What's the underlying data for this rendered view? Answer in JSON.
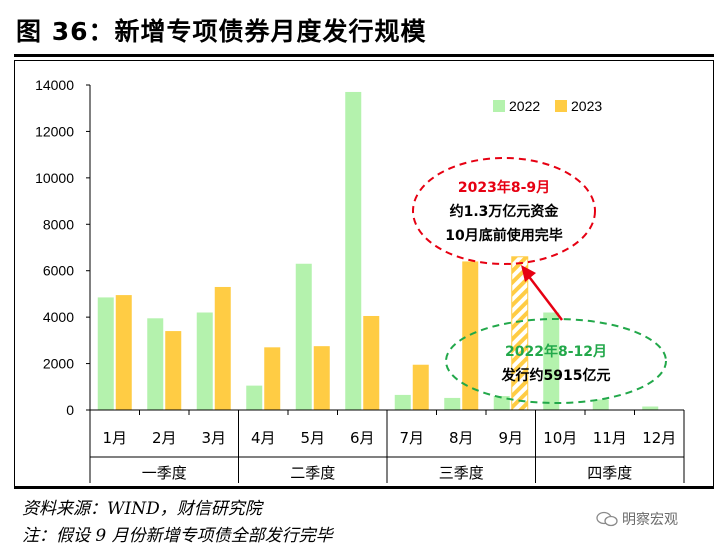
{
  "header": {
    "title": "图 36：新增专项债券月度发行规模"
  },
  "footer": {
    "source": "资料来源：WIND，财信研究院",
    "note": "注：假设 9 月份新增专项债全部发行完毕",
    "watermark": "明察宏观"
  },
  "colors": {
    "s2022": "#b4f2ad",
    "s2023": "#ffcc44",
    "red": "#e60012",
    "green": "#22a84a"
  },
  "annotations": {
    "a2023": [
      "2023年8-9月",
      "约1.3万亿元资金",
      "10月底前使用完毕"
    ],
    "a2022": [
      "2022年8-12月",
      "发行约5915亿元"
    ]
  },
  "chart_data": {
    "type": "bar",
    "categories": [
      "1月",
      "2月",
      "3月",
      "4月",
      "5月",
      "6月",
      "7月",
      "8月",
      "9月",
      "10月",
      "11月",
      "12月"
    ],
    "groups": [
      {
        "label": "一季度",
        "months": [
          1,
          2,
          3
        ]
      },
      {
        "label": "二季度",
        "months": [
          4,
          5,
          6
        ]
      },
      {
        "label": "三季度",
        "months": [
          7,
          8,
          9
        ]
      },
      {
        "label": "四季度",
        "months": [
          10,
          11,
          12
        ]
      }
    ],
    "series": [
      {
        "name": "2022",
        "values": [
          4850,
          3950,
          4200,
          1050,
          6300,
          13700,
          650,
          520,
          600,
          4200,
          450,
          150
        ]
      },
      {
        "name": "2023",
        "values": [
          4950,
          3400,
          5300,
          2700,
          2750,
          4050,
          1950,
          6400,
          6600,
          null,
          null,
          null
        ]
      }
    ],
    "hatched": [
      {
        "series": "2023",
        "month": 9
      }
    ],
    "yticks": [
      0,
      2000,
      4000,
      6000,
      8000,
      10000,
      12000,
      14000
    ],
    "ylim": [
      0,
      14000
    ],
    "legend_position": "top-right"
  }
}
